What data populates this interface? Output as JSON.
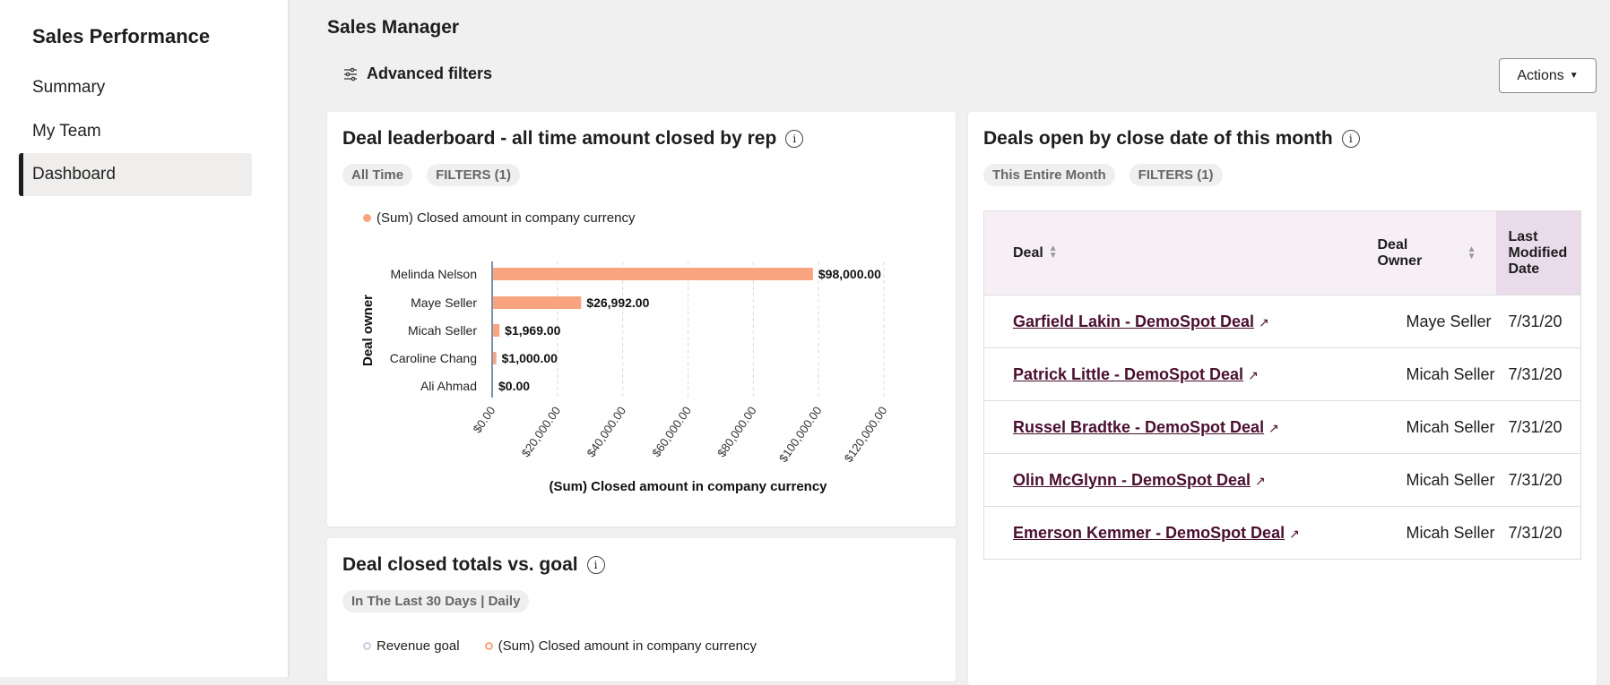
{
  "sidebar": {
    "title": "Sales Performance",
    "items": [
      {
        "label": "Summary"
      },
      {
        "label": "My Team"
      },
      {
        "label": "Dashboard",
        "active": true
      }
    ]
  },
  "header": {
    "title": "Sales Manager",
    "advanced_filters": "Advanced filters",
    "actions": "Actions"
  },
  "leaderboard": {
    "title": "Deal leaderboard - all time amount closed by rep",
    "pills": [
      "All Time",
      "FILTERS (1)"
    ]
  },
  "goal": {
    "title": "Deal closed totals vs. goal",
    "pills": [
      "In The Last 30 Days | Daily"
    ],
    "legend": [
      "Revenue goal",
      "(Sum) Closed amount in company currency"
    ]
  },
  "deals_open": {
    "title": "Deals open by close date of this month",
    "pills": [
      "This Entire Month",
      "FILTERS (1)"
    ],
    "columns": [
      "Deal",
      "Deal Owner",
      "Last Modified Date"
    ],
    "rows": [
      {
        "deal": "Garfield Lakin - DemoSpot Deal",
        "owner": "Maye Seller",
        "date": "7/31/20"
      },
      {
        "deal": "Patrick Little - DemoSpot Deal",
        "owner": "Micah Seller",
        "date": "7/31/20"
      },
      {
        "deal": "Russel Bradtke - DemoSpot Deal",
        "owner": "Micah Seller",
        "date": "7/31/20"
      },
      {
        "deal": "Olin McGlynn - DemoSpot Deal",
        "owner": "Micah Seller",
        "date": "7/31/20"
      },
      {
        "deal": "Emerson Kemmer - DemoSpot Deal",
        "owner": "Micah Seller",
        "date": "7/31/20"
      }
    ]
  },
  "colors": {
    "bar": "#f8a47e",
    "link": "#4a0f2f",
    "revenue_goal": "#c9cde0"
  },
  "chart_data": {
    "type": "bar",
    "orientation": "horizontal",
    "categories": [
      "Melinda Nelson",
      "Maye Seller",
      "Micah Seller",
      "Caroline Chang",
      "Ali Ahmad"
    ],
    "series": [
      {
        "name": "(Sum) Closed amount in company currency",
        "values": [
          98000,
          26992,
          1969,
          1000,
          0
        ]
      }
    ],
    "data_labels": [
      "$98,000.00",
      "$26,992.00",
      "$1,969.00",
      "$1,000.00",
      "$0.00"
    ],
    "xlabel": "(Sum) Closed amount in company currency",
    "ylabel": "Deal owner",
    "xlim": [
      0,
      120000
    ],
    "xticks": [
      "$0.00",
      "$20,000.00",
      "$40,000.00",
      "$60,000.00",
      "$80,000.00",
      "$100,000.00",
      "$120,000.00"
    ],
    "grid": true,
    "legend": "top-left"
  }
}
